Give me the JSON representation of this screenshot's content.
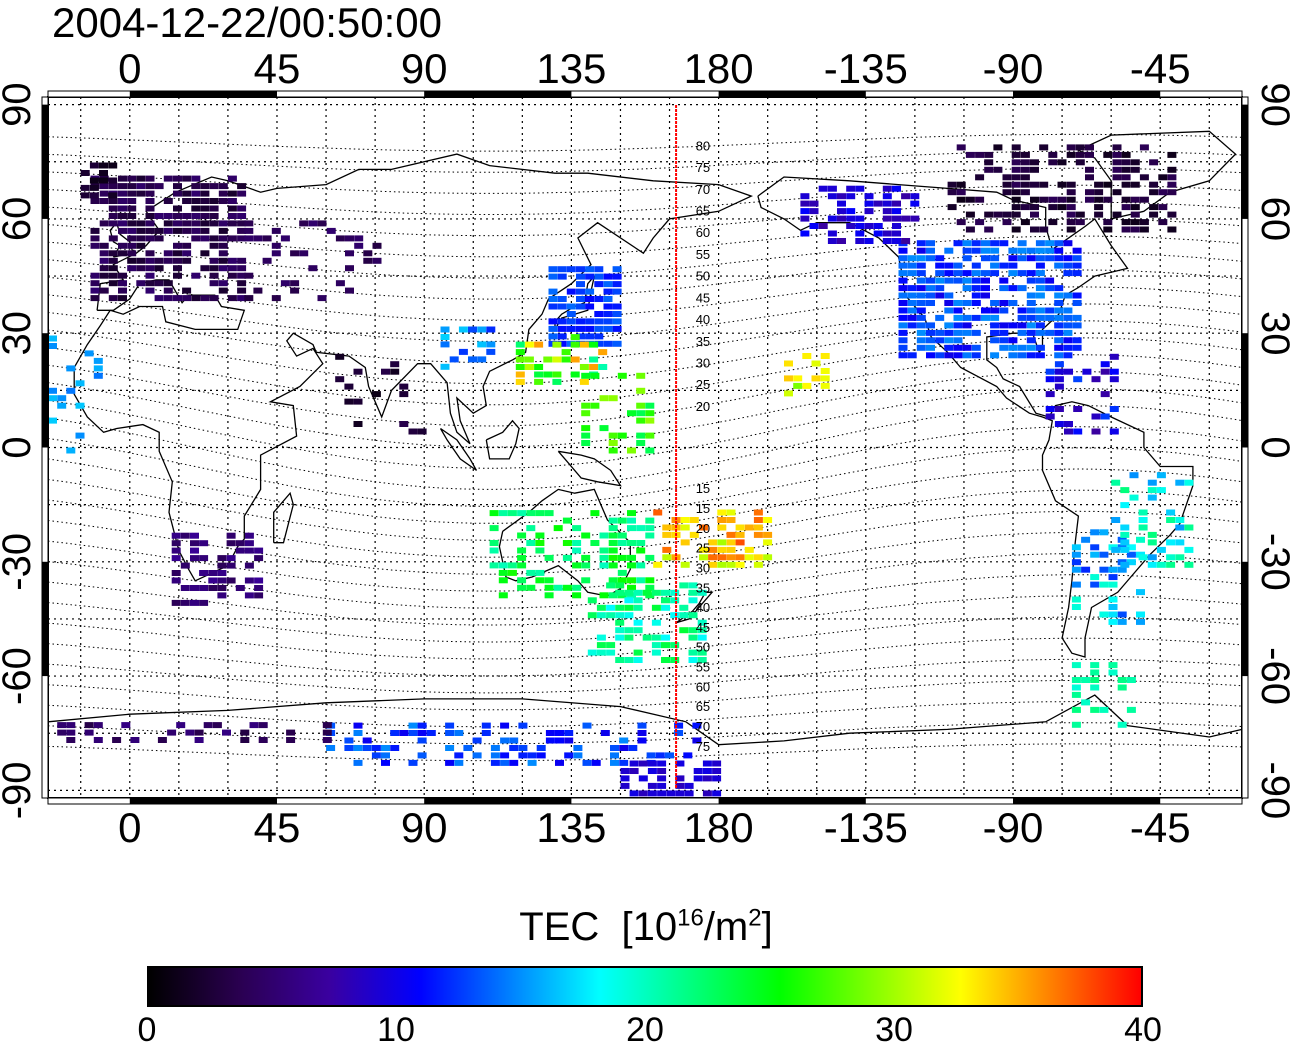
{
  "title": "2004-12-22/00:50:00",
  "map": {
    "lon_ticks": [
      "0",
      "45",
      "90",
      "135",
      "180",
      "-135",
      "-90",
      "-45"
    ],
    "lon_values": [
      0,
      45,
      90,
      135,
      180,
      225,
      270,
      315
    ],
    "lat_ticks": [
      "90",
      "60",
      "30",
      "0",
      "-30",
      "-60",
      "-90"
    ],
    "lat_values": [
      90,
      60,
      30,
      0,
      -30,
      -60,
      -90
    ],
    "lon_range": [
      -25,
      340
    ],
    "lat_range": [
      -92,
      92
    ],
    "meridian_marker": {
      "lon": 167,
      "color": "#ff0000"
    },
    "contour_labels": [
      "80",
      "75",
      "70",
      "65",
      "60",
      "55",
      "50",
      "45",
      "40",
      "35",
      "30",
      "25",
      "20",
      "15",
      "15",
      "20",
      "25",
      "30",
      "35",
      "40",
      "45",
      "50",
      "55",
      "60",
      "65",
      "70",
      "75"
    ],
    "land_color": "#000000"
  },
  "colorbar": {
    "title_main": "TEC",
    "title_unit_open": "[10",
    "title_exp1": "16",
    "title_mid": "/m",
    "title_exp2": "2",
    "title_close": "]",
    "ticks": [
      "0",
      "10",
      "20",
      "30",
      "40"
    ],
    "tick_values": [
      0,
      10,
      20,
      30,
      40
    ],
    "range": [
      0,
      40
    ],
    "colors": [
      "#000000",
      "#2a0050",
      "#3a00a0",
      "#0000ff",
      "#0080ff",
      "#00ffff",
      "#00ff80",
      "#00ff00",
      "#80ff00",
      "#ffff00",
      "#ff8000",
      "#ff0000"
    ]
  }
}
